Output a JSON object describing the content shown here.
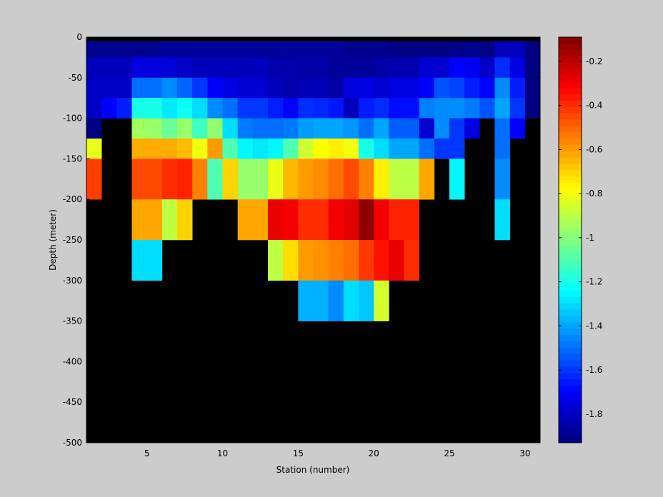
{
  "chart_data": {
    "type": "heatmap",
    "title": "",
    "xlabel": "Station (number)",
    "ylabel": "Depth (meter)",
    "x_range": [
      1,
      31
    ],
    "y_range": [
      -500,
      0
    ],
    "x_ticks": [
      5,
      10,
      15,
      20,
      25,
      30
    ],
    "y_ticks": [
      0,
      -50,
      -100,
      -150,
      -200,
      -250,
      -300,
      -350,
      -400,
      -450,
      -500
    ],
    "colorbar": {
      "colormap": "jet",
      "range": [
        -1.93,
        -0.09
      ],
      "ticks": [
        -0.2,
        -0.4,
        -0.6,
        -0.8,
        -1,
        -1.2,
        -1.4,
        -1.6,
        -1.8
      ]
    },
    "depth_bin_tops": [
      -5,
      -25,
      -50,
      -75,
      -100,
      -125,
      -150,
      -200,
      -250,
      -300,
      -350,
      -400,
      -450
    ],
    "depth_bin_bottoms": [
      -25,
      -50,
      -75,
      -100,
      -125,
      -150,
      -200,
      -250,
      -300,
      -350,
      -400,
      -450,
      -500
    ],
    "columns": [
      {
        "station": 1,
        "values": [
          -1.9,
          -1.82,
          -1.8,
          -1.8,
          -1.92,
          -0.82,
          -0.43
        ]
      },
      {
        "station": 2,
        "values": [
          -1.9,
          -1.82,
          -1.8,
          -1.7
        ]
      },
      {
        "station": 3,
        "values": [
          -1.9,
          -1.82,
          -1.8,
          -1.65
        ]
      },
      {
        "station": 4,
        "values": [
          -1.9,
          -1.75,
          -1.5,
          -1.2,
          -0.95,
          -0.63,
          -0.45,
          -0.62,
          -1.3
        ]
      },
      {
        "station": 5,
        "values": [
          -1.9,
          -1.76,
          -1.5,
          -1.2,
          -0.97,
          -0.63,
          -0.45,
          -0.62,
          -1.3
        ]
      },
      {
        "station": 6,
        "values": [
          -1.88,
          -1.77,
          -1.45,
          -1.28,
          -1.05,
          -0.63,
          -0.4,
          -0.9
        ]
      },
      {
        "station": 7,
        "values": [
          -1.88,
          -1.8,
          -1.52,
          -1.22,
          -0.97,
          -0.66,
          -0.38,
          -0.7
        ]
      },
      {
        "station": 8,
        "values": [
          -1.88,
          -1.82,
          -1.6,
          -1.3,
          -1.13,
          -0.8,
          -0.55
        ]
      },
      {
        "station": 9,
        "values": [
          -1.88,
          -1.82,
          -1.7,
          -1.45,
          -0.98,
          -0.6,
          -1.1
        ]
      },
      {
        "station": 10,
        "values": [
          -1.88,
          -1.82,
          -1.75,
          -1.5,
          -1.3,
          -1.1,
          -0.7
        ]
      },
      {
        "station": 11,
        "values": [
          -1.88,
          -1.82,
          -1.78,
          -1.6,
          -1.48,
          -1.25,
          -0.97,
          -0.62
        ]
      },
      {
        "station": 12,
        "values": [
          -1.88,
          -1.82,
          -1.78,
          -1.6,
          -1.5,
          -1.28,
          -0.97,
          -0.62
        ]
      },
      {
        "station": 13,
        "values": [
          -1.88,
          -1.85,
          -1.82,
          -1.65,
          -1.5,
          -1.25,
          -0.82,
          -0.28,
          -0.9
        ]
      },
      {
        "station": 14,
        "values": [
          -1.88,
          -1.85,
          -1.85,
          -1.7,
          -1.48,
          -1.1,
          -0.65,
          -0.3,
          -0.72
        ]
      },
      {
        "station": 15,
        "values": [
          -1.88,
          -1.86,
          -1.83,
          -1.62,
          -1.42,
          -0.87,
          -0.6,
          -0.4,
          -0.6,
          -1.38
        ]
      },
      {
        "station": 16,
        "values": [
          -1.88,
          -1.86,
          -1.83,
          -1.63,
          -1.4,
          -0.78,
          -0.57,
          -0.4,
          -0.58,
          -1.38
        ]
      },
      {
        "station": 17,
        "values": [
          -1.88,
          -1.88,
          -1.86,
          -1.66,
          -1.4,
          -0.75,
          -0.52,
          -0.3,
          -0.55,
          -1.45
        ]
      },
      {
        "station": 18,
        "values": [
          -1.9,
          -1.88,
          -1.76,
          -1.82,
          -1.43,
          -0.8,
          -0.45,
          -0.27,
          -0.52,
          -1.3
        ]
      },
      {
        "station": 19,
        "values": [
          -1.9,
          -1.88,
          -1.75,
          -1.65,
          -1.5,
          -1.2,
          -0.55,
          -0.12,
          -0.42,
          -1.34
        ]
      },
      {
        "station": 20,
        "values": [
          -1.9,
          -1.86,
          -1.78,
          -1.62,
          -1.4,
          -1.3,
          -0.75,
          -0.3,
          -0.35,
          -0.86
        ]
      },
      {
        "station": 21,
        "values": [
          -1.92,
          -1.84,
          -1.75,
          -1.68,
          -1.53,
          -1.4,
          -0.9,
          -0.38,
          -0.28
        ]
      },
      {
        "station": 22,
        "values": [
          -1.92,
          -1.84,
          -1.75,
          -1.68,
          -1.53,
          -1.4,
          -0.9,
          -0.38,
          -0.4
        ]
      },
      {
        "station": 23,
        "values": [
          -1.92,
          -1.78,
          -1.7,
          -1.47,
          -1.78,
          -1.5,
          -0.62
        ]
      },
      {
        "station": 24,
        "values": [
          -1.92,
          -1.78,
          -1.55,
          -1.45,
          -1.45,
          -1.6
        ]
      },
      {
        "station": 25,
        "values": [
          -1.92,
          -1.7,
          -1.58,
          -1.45,
          -1.6,
          -1.6,
          -1.25
        ]
      },
      {
        "station": 26,
        "values": [
          -1.9,
          -1.72,
          -1.65,
          -1.48,
          -1.75
        ]
      },
      {
        "station": 27,
        "values": [
          -1.92,
          -1.8,
          -1.7,
          -1.55
        ]
      },
      {
        "station": 28,
        "values": [
          -1.82,
          -1.62,
          -1.45,
          -1.4,
          -1.5,
          -1.5,
          -1.45,
          -1.3
        ]
      },
      {
        "station": 29,
        "values": [
          -1.82,
          -1.75,
          -1.65,
          -1.6,
          -1.7
        ]
      },
      {
        "station": 30,
        "values": [
          -1.93,
          -1.93,
          -1.93,
          -1.93
        ]
      }
    ]
  }
}
